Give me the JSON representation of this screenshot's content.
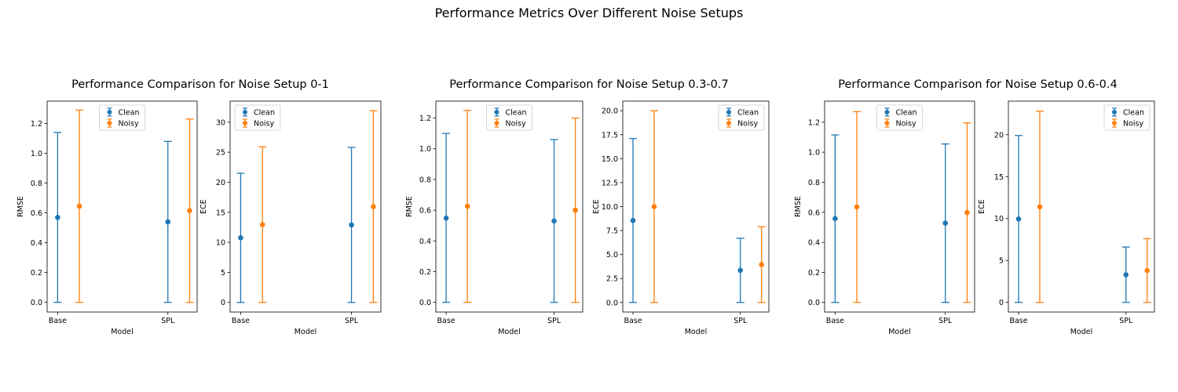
{
  "suptitle": "Performance Metrics Over Different Noise Setups",
  "colors": {
    "clean": "#1f77b4",
    "noisy": "#ff7f0e"
  },
  "legend": {
    "entries": [
      "Clean",
      "Noisy"
    ],
    "placement": "upper-center / upper-right"
  },
  "chart_data": [
    {
      "type": "errorbar",
      "group_title": "Performance Comparison for Noise Setup 0-1",
      "title": "",
      "xlabel": "Model",
      "ylabel": "RMSE",
      "categories": [
        "Base",
        "SPL"
      ],
      "ylim": [
        -0.065,
        1.35
      ],
      "yticks": [
        "0.0",
        "0.2",
        "0.4",
        "0.6",
        "0.8",
        "1.0",
        "1.2"
      ],
      "ytick_values": [
        0,
        0.2,
        0.4,
        0.6,
        0.8,
        1.0,
        1.2
      ],
      "legend_pos": "center",
      "series": [
        {
          "name": "Clean",
          "values": [
            0.57,
            0.54
          ],
          "err_low": [
            0,
            0
          ],
          "err_high": [
            1.14,
            1.08
          ]
        },
        {
          "name": "Noisy",
          "values": [
            0.645,
            0.615
          ],
          "err_low": [
            0,
            0
          ],
          "err_high": [
            1.29,
            1.23
          ]
        }
      ]
    },
    {
      "type": "errorbar",
      "title": "",
      "xlabel": "Model",
      "ylabel": "ECE",
      "categories": [
        "Base",
        "SPL"
      ],
      "ylim": [
        -1.6,
        33.5
      ],
      "yticks": [
        "0",
        "5",
        "10",
        "15",
        "20",
        "25",
        "30"
      ],
      "ytick_values": [
        0,
        5,
        10,
        15,
        20,
        25,
        30
      ],
      "legend_pos": "left",
      "series": [
        {
          "name": "Clean",
          "values": [
            10.75,
            12.9
          ],
          "err_low": [
            0,
            0
          ],
          "err_high": [
            21.5,
            25.8
          ]
        },
        {
          "name": "Noisy",
          "values": [
            12.95,
            15.95
          ],
          "err_low": [
            0,
            0
          ],
          "err_high": [
            25.9,
            31.9
          ]
        }
      ]
    },
    {
      "type": "errorbar",
      "group_title": "Performance Comparison for Noise Setup 0.3-0.7",
      "title": "",
      "xlabel": "Model",
      "ylabel": "RMSE",
      "categories": [
        "Base",
        "SPL"
      ],
      "ylim": [
        -0.063,
        1.31
      ],
      "yticks": [
        "0.0",
        "0.2",
        "0.4",
        "0.6",
        "0.8",
        "1.0",
        "1.2"
      ],
      "ytick_values": [
        0,
        0.2,
        0.4,
        0.6,
        0.8,
        1.0,
        1.2
      ],
      "legend_pos": "center",
      "series": [
        {
          "name": "Clean",
          "values": [
            0.548,
            0.53
          ],
          "err_low": [
            0,
            0
          ],
          "err_high": [
            1.1,
            1.06
          ]
        },
        {
          "name": "Noisy",
          "values": [
            0.625,
            0.6
          ],
          "err_low": [
            0,
            0
          ],
          "err_high": [
            1.25,
            1.2
          ]
        }
      ]
    },
    {
      "type": "errorbar",
      "title": "",
      "xlabel": "Model",
      "ylabel": "ECE",
      "categories": [
        "Base",
        "SPL"
      ],
      "ylim": [
        -1.0,
        21.0
      ],
      "yticks": [
        "0.0",
        "2.5",
        "5.0",
        "7.5",
        "10.0",
        "12.5",
        "15.0",
        "17.5",
        "20.0"
      ],
      "ytick_values": [
        0,
        2.5,
        5,
        7.5,
        10,
        12.5,
        15,
        17.5,
        20
      ],
      "legend_pos": "right",
      "series": [
        {
          "name": "Clean",
          "values": [
            8.55,
            3.35
          ],
          "err_low": [
            0,
            0
          ],
          "err_high": [
            17.1,
            6.7
          ]
        },
        {
          "name": "Noisy",
          "values": [
            10.0,
            3.95
          ],
          "err_low": [
            0,
            0
          ],
          "err_high": [
            20.0,
            7.9
          ]
        }
      ]
    },
    {
      "type": "errorbar",
      "group_title": "Performance Comparison for Noise Setup 0.6-0.4",
      "title": "",
      "xlabel": "Model",
      "ylabel": "RMSE",
      "categories": [
        "Base",
        "SPL"
      ],
      "ylim": [
        -0.064,
        1.34
      ],
      "yticks": [
        "0.0",
        "0.2",
        "0.4",
        "0.6",
        "0.8",
        "1.0",
        "1.2"
      ],
      "ytick_values": [
        0,
        0.2,
        0.4,
        0.6,
        0.8,
        1.0,
        1.2
      ],
      "legend_pos": "center",
      "series": [
        {
          "name": "Clean",
          "values": [
            0.558,
            0.528
          ],
          "err_low": [
            0,
            0
          ],
          "err_high": [
            1.115,
            1.055
          ]
        },
        {
          "name": "Noisy",
          "values": [
            0.636,
            0.598
          ],
          "err_low": [
            0,
            0
          ],
          "err_high": [
            1.27,
            1.195
          ]
        }
      ]
    },
    {
      "type": "errorbar",
      "title": "",
      "xlabel": "Model",
      "ylabel": "ECE",
      "categories": [
        "Base",
        "SPL"
      ],
      "ylim": [
        -1.15,
        24.0
      ],
      "yticks": [
        "0",
        "5",
        "10",
        "15",
        "20"
      ],
      "ytick_values": [
        0,
        5,
        10,
        15,
        20
      ],
      "legend_pos": "right",
      "series": [
        {
          "name": "Clean",
          "values": [
            9.95,
            3.3
          ],
          "err_low": [
            0,
            0
          ],
          "err_high": [
            19.9,
            6.6
          ]
        },
        {
          "name": "Noisy",
          "values": [
            11.4,
            3.8
          ],
          "err_low": [
            0,
            0
          ],
          "err_high": [
            22.8,
            7.6
          ]
        }
      ]
    }
  ]
}
